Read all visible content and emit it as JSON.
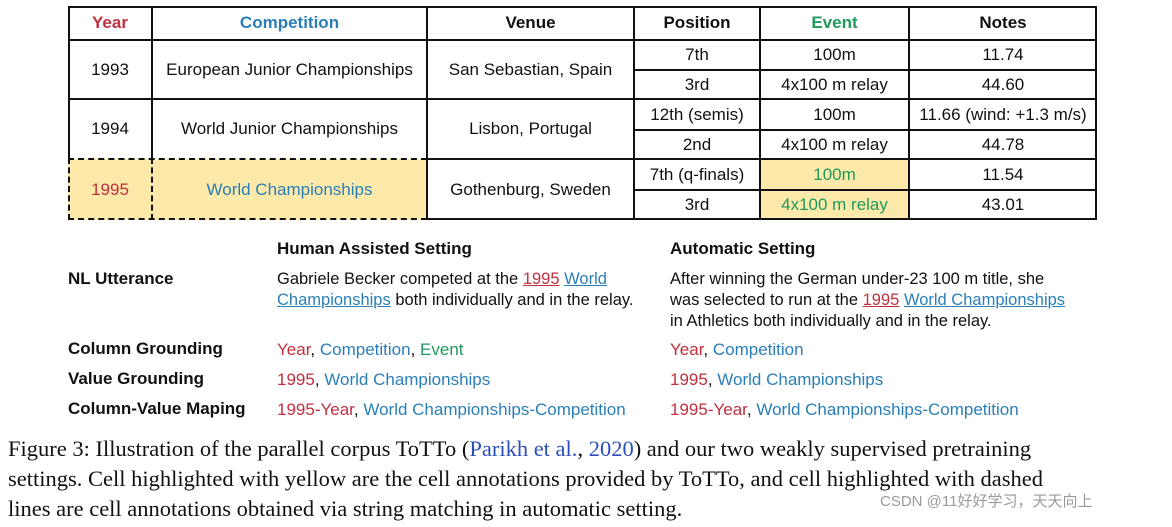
{
  "table": {
    "headers": [
      "Year",
      "Competition",
      "Venue",
      "Position",
      "Event",
      "Notes"
    ],
    "header_colors": {
      "Year": "#c0303f",
      "Competition": "#2a7fb8",
      "Event": "#1f9a5c"
    },
    "groups": [
      {
        "year": "1993",
        "competition": "European Junior Championships",
        "venue": "San Sebastian, Spain",
        "rows": [
          {
            "position": "7th",
            "event": "100m",
            "notes": "11.74"
          },
          {
            "position": "3rd",
            "event": "4x100 m relay",
            "notes": "44.60"
          }
        ]
      },
      {
        "year": "1994",
        "competition": "World Junior Championships",
        "venue": "Lisbon, Portugal",
        "rows": [
          {
            "position": "12th (semis)",
            "event": "100m",
            "notes": "11.66 (wind: +1.3 m/s)"
          },
          {
            "position": "2nd",
            "event": "4x100 m relay",
            "notes": "44.78"
          }
        ]
      },
      {
        "year": "1995",
        "competition": "World Championships",
        "venue": "Gothenburg, Sweden",
        "rows": [
          {
            "position": "7th (q-finals)",
            "event": "100m",
            "notes": "11.54"
          },
          {
            "position": "3rd",
            "event": "4x100 m relay",
            "notes": "43.01"
          }
        ]
      }
    ],
    "highlight_color": "#fde9a9"
  },
  "settings": {
    "human_title": "Human Assisted Setting",
    "auto_title": "Automatic Setting",
    "row_labels": {
      "nl": "NL Utterance",
      "column_grounding": "Column Grounding",
      "value_grounding": "Value Grounding",
      "column_value": "Column-Value Maping"
    },
    "human": {
      "nl_line1_pre": "Gabriele Becker competed at the ",
      "nl_year": "1995",
      "nl_comp1": "World",
      "nl_comp2": "Championships",
      "nl_line2_post": " both individually and in the relay.",
      "cg_year": "Year",
      "cg_comp": "Competition",
      "cg_event": "Event",
      "vg_year": "1995",
      "vg_comp": "World Championships",
      "cv_year": "1995-Year",
      "cv_comp": "World Championships-Competition"
    },
    "auto": {
      "nl_line1": "After winning the German under-23 100 m title, she",
      "nl_line2_pre": "was selected to run at the ",
      "nl_year": "1995",
      "nl_comp": "World Championships",
      "nl_line3": "in Athletics both individually and in the relay.",
      "cg_year": "Year",
      "cg_comp": "Competition",
      "vg_year": "1995",
      "vg_comp": "World Championships",
      "cv_year": "1995-Year",
      "cv_comp": "World Championships-Competition"
    },
    "sep": ", "
  },
  "caption": {
    "line1_pre": "Figure 3: Illustration of the parallel corpus ToTTo (",
    "cite_author": "Parikh et al.",
    "cite_sep": ", ",
    "cite_year": "2020",
    "line1_post": ") and our two weakly supervised pretraining",
    "line2": "settings. Cell highlighted with yellow are the cell annotations provided by ToTTo, and cell highlighted with dashed",
    "line3": "lines are cell annotations obtained via string matching in automatic setting."
  },
  "watermark": "CSDN @11好好学习，天天向上"
}
